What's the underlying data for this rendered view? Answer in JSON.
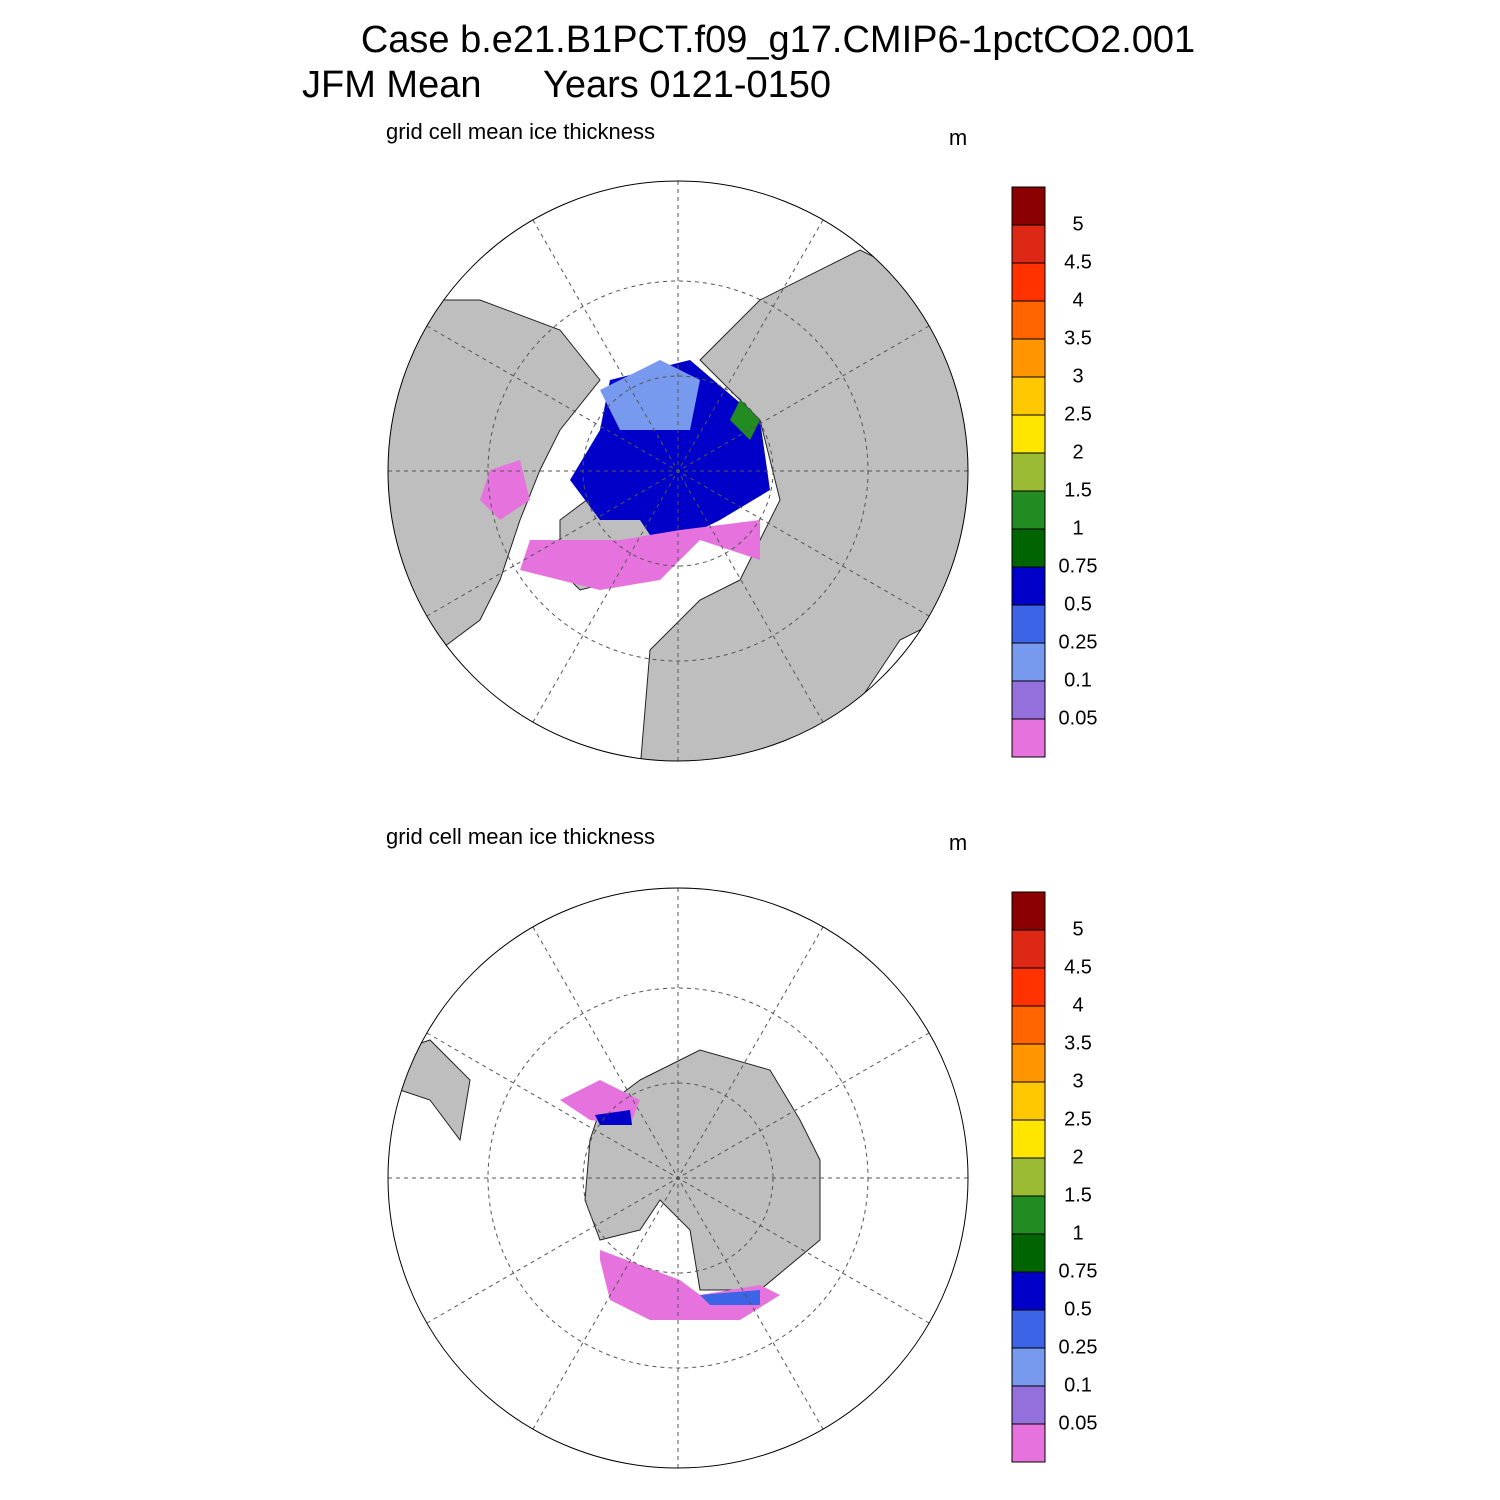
{
  "header": {
    "title": "Case b.e21.B1PCT.f09_g17.CMIP6-1pctCO2.001",
    "season": "JFM Mean",
    "years": "Years 0121-0150"
  },
  "panels": [
    {
      "label": "grid cell mean ice thickness",
      "units": "m",
      "colorbar": {
        "levels": [
          0.05,
          0.1,
          0.25,
          0.5,
          0.75,
          1,
          1.5,
          2,
          2.5,
          3,
          3.5,
          4,
          4.5,
          5
        ],
        "colors": [
          "#e673dd",
          "#9370db",
          "#7799ee",
          "#3c64e6",
          "#0000c8",
          "#006400",
          "#228b22",
          "#9abb33",
          "#ffe600",
          "#ffc800",
          "#ff9600",
          "#ff6400",
          "#ff3200",
          "#dc2814",
          "#8b0000"
        ]
      }
    },
    {
      "label": "grid cell mean ice thickness",
      "units": "m",
      "colorbar": {
        "levels": [
          0.05,
          0.1,
          0.25,
          0.5,
          0.75,
          1,
          1.5,
          2,
          2.5,
          3,
          3.5,
          4,
          4.5,
          5
        ],
        "colors": [
          "#e673dd",
          "#9370db",
          "#7799ee",
          "#3c64e6",
          "#0000c8",
          "#006400",
          "#228b22",
          "#9abb33",
          "#ffe600",
          "#ffc800",
          "#ff9600",
          "#ff6400",
          "#ff3200",
          "#dc2814",
          "#8b0000"
        ]
      }
    }
  ]
}
